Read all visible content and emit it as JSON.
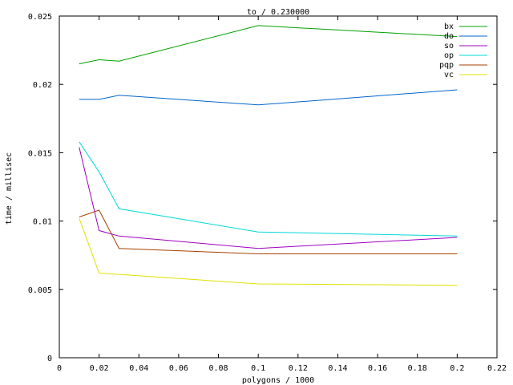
{
  "chart_data": {
    "type": "line",
    "title": "to / 0.230000",
    "xlabel": "polygons / 1000",
    "ylabel": "time / millisec",
    "xlim": [
      0,
      0.22
    ],
    "ylim": [
      0,
      0.025
    ],
    "xticks": [
      "0",
      "0.02",
      "0.04",
      "0.06",
      "0.08",
      "0.1",
      "0.12",
      "0.14",
      "0.16",
      "0.18",
      "0.2",
      "0.22"
    ],
    "yticks": [
      "0",
      "0.005",
      "0.01",
      "0.015",
      "0.02",
      "0.025"
    ],
    "grid": false,
    "legend_position": "top-right",
    "series": [
      {
        "name": "bx",
        "color": "#00a000",
        "x": [
          0.01,
          0.02,
          0.03,
          0.1,
          0.2
        ],
        "y": [
          0.0215,
          0.0218,
          0.0217,
          0.0243,
          0.0235
        ]
      },
      {
        "name": "do",
        "color": "#0066cc",
        "x": [
          0.01,
          0.02,
          0.03,
          0.1,
          0.2
        ],
        "y": [
          0.0189,
          0.0189,
          0.0192,
          0.0185,
          0.0196
        ]
      },
      {
        "name": "so",
        "color": "#a000c0",
        "x": [
          0.01,
          0.02,
          0.03,
          0.1,
          0.2
        ],
        "y": [
          0.0154,
          0.0093,
          0.0089,
          0.008,
          0.0088
        ]
      },
      {
        "name": "op",
        "color": "#00d8d8",
        "x": [
          0.01,
          0.02,
          0.03,
          0.1,
          0.2
        ],
        "y": [
          0.0158,
          0.0136,
          0.0109,
          0.0092,
          0.0089
        ]
      },
      {
        "name": "pqp",
        "color": "#a84000",
        "x": [
          0.01,
          0.02,
          0.03,
          0.1,
          0.2
        ],
        "y": [
          0.0103,
          0.0108,
          0.008,
          0.0076,
          0.0076
        ]
      },
      {
        "name": "vc",
        "color": "#e0e000",
        "x": [
          0.01,
          0.02,
          0.03,
          0.1,
          0.2
        ],
        "y": [
          0.0102,
          0.0062,
          0.0061,
          0.0054,
          0.0053
        ]
      }
    ]
  }
}
